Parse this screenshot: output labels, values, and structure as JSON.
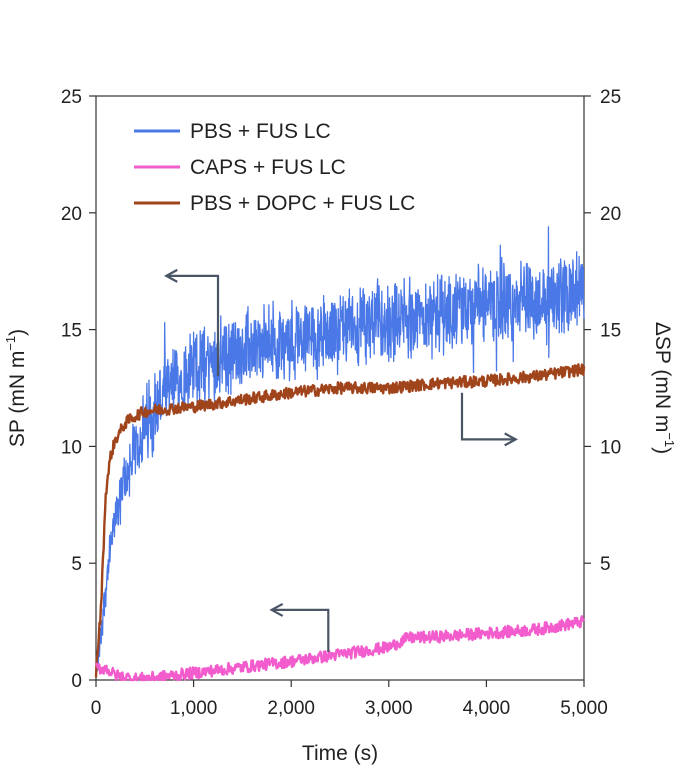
{
  "chart_data": {
    "type": "line",
    "xlabel": "Time (s)",
    "ylabel_left": "SP (mN m",
    "ylabel_right": "ΔSP (mN m",
    "ylabel_sup": "−1",
    "ylabel_close": ")",
    "xlim": [
      0,
      5000
    ],
    "ylim_left": [
      0,
      25
    ],
    "ylim_right": [
      0,
      25
    ],
    "x_ticks": [
      0,
      1000,
      2000,
      3000,
      4000,
      5000
    ],
    "x_tick_labels": [
      "0",
      "1,000",
      "2,000",
      "3,000",
      "4,000",
      "5,000"
    ],
    "y_ticks_left": [
      0,
      5,
      10,
      15,
      20,
      25
    ],
    "y_tick_labels_left": [
      "0",
      "5",
      "10",
      "15",
      "20",
      "25"
    ],
    "y_ticks_right": [
      5,
      10,
      15,
      20,
      25
    ],
    "y_tick_labels_right": [
      "5",
      "10",
      "15",
      "20",
      "25"
    ],
    "legend_position": "top-left",
    "grid": false,
    "series": [
      {
        "name": "PBS + FUS LC",
        "color": "#4a78e6",
        "axis": "left",
        "x": [
          0,
          50,
          100,
          150,
          200,
          300,
          400,
          500,
          600,
          700,
          800,
          900,
          1000,
          1200,
          1500,
          1800,
          2000,
          2500,
          3000,
          3500,
          4000,
          4500,
          5000
        ],
        "y": [
          0.2,
          2.0,
          4.0,
          5.6,
          7.0,
          8.6,
          9.8,
          10.8,
          11.6,
          12.2,
          12.6,
          13.0,
          13.3,
          13.7,
          14.1,
          14.4,
          14.6,
          15.0,
          15.4,
          15.7,
          16.0,
          16.2,
          16.6
        ],
        "noise": 1.4
      },
      {
        "name": "CAPS + FUS LC",
        "color": "#f25ccc",
        "axis": "left",
        "x": [
          0,
          100,
          200,
          400,
          600,
          800,
          1000,
          1500,
          2000,
          2500,
          3000,
          3200,
          3500,
          4000,
          4500,
          5000
        ],
        "y": [
          0.5,
          0.5,
          0.2,
          0.05,
          0.1,
          0.2,
          0.3,
          0.55,
          0.8,
          1.1,
          1.4,
          1.8,
          1.85,
          2.0,
          2.15,
          2.5
        ],
        "noise": 0.25
      },
      {
        "name": "PBS + DOPC + FUS LC",
        "color": "#a0441c",
        "axis": "left",
        "x": [
          0,
          50,
          80,
          100,
          150,
          200,
          300,
          400,
          500,
          700,
          1000,
          1500,
          2000,
          2500,
          3000,
          3500,
          4000,
          4500,
          5000
        ],
        "y": [
          0.3,
          3.0,
          6.0,
          8.0,
          9.6,
          10.3,
          11.0,
          11.3,
          11.5,
          11.6,
          11.7,
          12.0,
          12.3,
          12.5,
          12.5,
          12.7,
          12.8,
          13.0,
          13.3
        ],
        "noise": 0.25
      }
    ],
    "annotations": [
      {
        "type": "arrow",
        "points": [
          [
            1250,
            13.0
          ],
          [
            1250,
            17.3
          ],
          [
            720,
            17.3
          ]
        ],
        "meaning": "points to left axis",
        "color": "#4a5566"
      },
      {
        "type": "arrow",
        "points": [
          [
            3750,
            12.3
          ],
          [
            3750,
            10.3
          ],
          [
            4300,
            10.3
          ]
        ],
        "meaning": "points to right axis",
        "color": "#4a5566"
      },
      {
        "type": "arrow",
        "points": [
          [
            2380,
            1.2
          ],
          [
            2380,
            3.0
          ],
          [
            1800,
            3.0
          ]
        ],
        "meaning": "points to left axis",
        "color": "#4a5566"
      }
    ]
  }
}
